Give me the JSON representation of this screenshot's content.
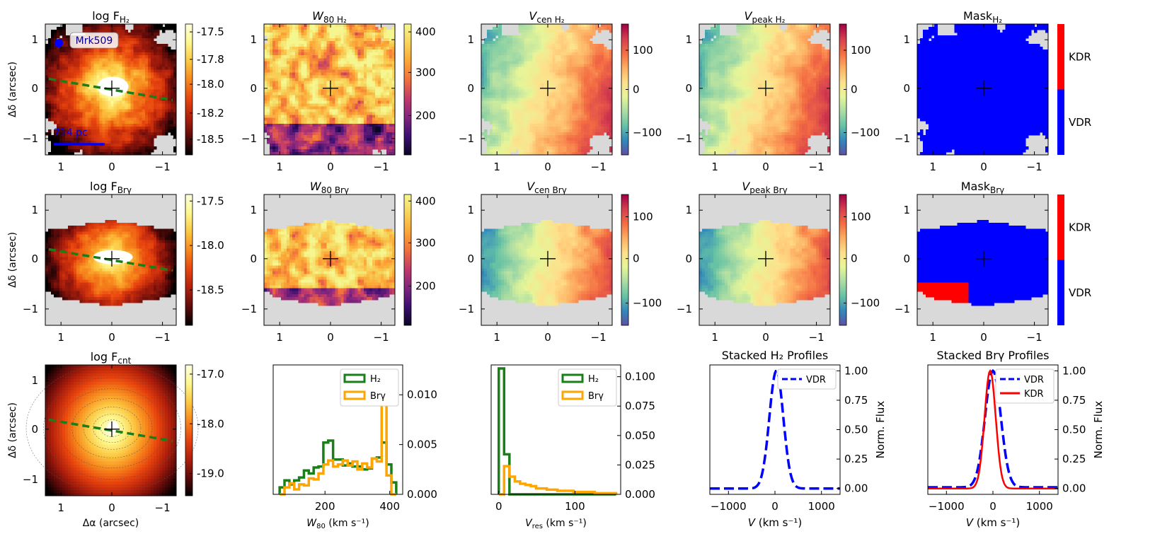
{
  "figure": {
    "ylabel": "Δδ (arcsec)",
    "xlabel_map": "Δα (arcsec)",
    "map_xticks": [
      "1",
      "0",
      "−1"
    ],
    "map_yticks": [
      "1",
      "0",
      "−1"
    ],
    "annotations": {
      "galaxy": "Mrk509",
      "scale": "714 pc"
    }
  },
  "panels": {
    "flux_h2": {
      "title": "log F",
      "sub": "H₂",
      "cbar_ticks": [
        "-17.5",
        "-17.8",
        "-18.0",
        "-18.2",
        "-18.5"
      ],
      "cmap": [
        "#000000",
        "#5e0b0b",
        "#b0200c",
        "#e8440e",
        "#f7861c",
        "#fcc741",
        "#fdf78c",
        "#ffffdf"
      ]
    },
    "w80_h2": {
      "title": "W",
      "sub": "80 H₂",
      "cbar_ticks": [
        "400",
        "300",
        "200"
      ],
      "cmap": [
        "#0a0624",
        "#3b0f6f",
        "#80257f",
        "#c03a6b",
        "#f06f3b",
        "#fca636",
        "#f7d45a",
        "#f5f68f"
      ]
    },
    "vcen_h2": {
      "title": "V",
      "sub": "cen H₂",
      "cbar_ticks": [
        "100",
        "0",
        "−100"
      ],
      "cmap": [
        "#5e4fa2",
        "#3288bd",
        "#66c2a5",
        "#abdda4",
        "#e6f598",
        "#fee08b",
        "#fdae61",
        "#f46d43",
        "#d53e4f",
        "#9e0142"
      ]
    },
    "vpeak_h2": {
      "title": "V",
      "sub": "peak H₂",
      "cbar_ticks": [
        "100",
        "0",
        "−100"
      ],
      "cmap": [
        "#5e4fa2",
        "#3288bd",
        "#66c2a5",
        "#abdda4",
        "#e6f598",
        "#fee08b",
        "#fdae61",
        "#f46d43",
        "#d53e4f",
        "#9e0142"
      ]
    },
    "mask_h2": {
      "title": "Mask",
      "sub": "H₂",
      "cbar_ticks": [
        "KDR",
        "VDR"
      ],
      "cmap": [
        "#0000ff",
        "#ff0000"
      ]
    },
    "flux_brg": {
      "title": "log F",
      "sub": "Brγ",
      "cbar_ticks": [
        "-17.5",
        "-18.0",
        "-18.5"
      ],
      "cmap": [
        "#000000",
        "#5e0b0b",
        "#b0200c",
        "#e8440e",
        "#f7861c",
        "#fcc741",
        "#fdf78c",
        "#ffffdf"
      ]
    },
    "w80_brg": {
      "title": "W",
      "sub": "80 Brγ",
      "cbar_ticks": [
        "400",
        "300",
        "200"
      ],
      "cmap": [
        "#0a0624",
        "#3b0f6f",
        "#80257f",
        "#c03a6b",
        "#f06f3b",
        "#fca636",
        "#f7d45a",
        "#f5f68f"
      ]
    },
    "vcen_brg": {
      "title": "V",
      "sub": "cen Brγ",
      "cbar_ticks": [
        "100",
        "0",
        "−100"
      ],
      "cmap": [
        "#5e4fa2",
        "#3288bd",
        "#66c2a5",
        "#abdda4",
        "#e6f598",
        "#fee08b",
        "#fdae61",
        "#f46d43",
        "#d53e4f",
        "#9e0142"
      ]
    },
    "vpeak_brg": {
      "title": "V",
      "sub": "peak Brγ",
      "cbar_ticks": [
        "100",
        "0",
        "−100"
      ],
      "cmap": [
        "#5e4fa2",
        "#3288bd",
        "#66c2a5",
        "#abdda4",
        "#e6f598",
        "#fee08b",
        "#fdae61",
        "#f46d43",
        "#d53e4f",
        "#9e0142"
      ]
    },
    "mask_brg": {
      "title": "Mask",
      "sub": "Brγ",
      "cbar_ticks": [
        "KDR",
        "VDR"
      ],
      "cmap": [
        "#0000ff",
        "#ff0000"
      ]
    },
    "flux_cnt": {
      "title": "log F",
      "sub": "cnt",
      "cbar_ticks": [
        "-17.0",
        "-18.0",
        "-19.0"
      ],
      "cmap": [
        "#000000",
        "#5e0b0b",
        "#b0200c",
        "#e8440e",
        "#f7861c",
        "#fcc741",
        "#fdf78c",
        "#ffffdf"
      ]
    }
  },
  "chart_data": [
    {
      "type": "histogram",
      "name": "w80_hist",
      "xlabel": "W80 (km s⁻¹)",
      "xlim": [
        40,
        440
      ],
      "ylim": [
        0,
        0.013
      ],
      "xticks": [
        200,
        400
      ],
      "yticks": [
        "0.000",
        "0.005",
        "0.010"
      ],
      "legend": [
        "H₂",
        "Brγ"
      ],
      "bin_edges": [
        60,
        75,
        90,
        105,
        120,
        135,
        150,
        165,
        180,
        195,
        210,
        225,
        240,
        255,
        270,
        285,
        300,
        315,
        330,
        345,
        360,
        375,
        390,
        405,
        420
      ],
      "series": [
        {
          "name": "H₂",
          "color": "#1a7f1a",
          "values": [
            0.0007,
            0.0014,
            0.001,
            0.0014,
            0.0017,
            0.0024,
            0.0021,
            0.0027,
            0.0028,
            0.0052,
            0.0054,
            0.0035,
            0.0035,
            0.0029,
            0.0031,
            0.0028,
            0.0028,
            0.0025,
            0.0026,
            0.0036,
            0.0037,
            0.0052,
            0.003,
            0.0012
          ]
        },
        {
          "name": "Brγ",
          "color": "#ffa500",
          "values": [
            0.0,
            0.0007,
            0.0011,
            0.0005,
            0.001,
            0.0009,
            0.0016,
            0.0015,
            0.0021,
            0.003,
            0.0034,
            0.0028,
            0.003,
            0.0034,
            0.0029,
            0.0033,
            0.0025,
            0.0031,
            0.0027,
            0.0036,
            0.0033,
            0.0121,
            0.0019,
            0.0
          ]
        }
      ]
    },
    {
      "type": "histogram",
      "name": "vres_hist",
      "xlabel": "Vres (km s⁻¹)",
      "xlim": [
        -10,
        160
      ],
      "ylim": [
        0,
        0.11
      ],
      "xticks": [
        0,
        100
      ],
      "yticks": [
        "0.000",
        "0.025",
        "0.050",
        "0.075",
        "0.100"
      ],
      "legend": [
        "H₂",
        "Brγ"
      ],
      "bin_edges": [
        0,
        7,
        14,
        21,
        28,
        35,
        42,
        49,
        56,
        63,
        70,
        77,
        84,
        91,
        98,
        105,
        112,
        119,
        126,
        133,
        140,
        147,
        154
      ],
      "series": [
        {
          "name": "H₂",
          "color": "#1a7f1a",
          "values": [
            0.107,
            0.034,
            0.0,
            0.0,
            0.0,
            0.0,
            0.0,
            0.0,
            0.0,
            0.0,
            0.0,
            0.0,
            0.0,
            0.0,
            0.0,
            0.0,
            0.0,
            0.0,
            0.0,
            0.0,
            0.0,
            0.0
          ]
        },
        {
          "name": "Brγ",
          "color": "#ffa500",
          "values": [
            0.0,
            0.024,
            0.015,
            0.011,
            0.009,
            0.008,
            0.007,
            0.005,
            0.005,
            0.004,
            0.004,
            0.003,
            0.003,
            0.003,
            0.002,
            0.002,
            0.002,
            0.002,
            0.001,
            0.001,
            0.001,
            0.001
          ]
        }
      ]
    },
    {
      "type": "line",
      "name": "stacked_h2",
      "title": "Stacked H₂ Profiles",
      "xlabel": "V (km s⁻¹)",
      "ylabel": "Norm. Flux",
      "xlim": [
        -1400,
        1400
      ],
      "ylim": [
        -0.05,
        1.05
      ],
      "xticks": [
        -1000,
        0,
        1000
      ],
      "yticks": [
        "0.00",
        "0.25",
        "0.50",
        "0.75",
        "1.00"
      ],
      "series": [
        {
          "name": "VDR",
          "color": "#0000ff",
          "style": "dashed",
          "center": 30,
          "sigma": 150,
          "baseline": 0.0
        }
      ]
    },
    {
      "type": "line",
      "name": "stacked_brg",
      "title": "Stacked Brγ Profiles",
      "xlabel": "V (km s⁻¹)",
      "ylabel": "Norm. Flux",
      "xlim": [
        -1400,
        1400
      ],
      "ylim": [
        -0.05,
        1.05
      ],
      "xticks": [
        -1000,
        0,
        1000
      ],
      "yticks": [
        "0.00",
        "0.25",
        "0.50",
        "0.75",
        "1.00"
      ],
      "series": [
        {
          "name": "VDR",
          "color": "#0000ff",
          "style": "dashed",
          "center": 0,
          "sigma": 170,
          "baseline": 0.01
        },
        {
          "name": "KDR",
          "color": "#ff0000",
          "style": "solid",
          "center": -60,
          "sigma": 120,
          "baseline": 0.0
        }
      ]
    }
  ]
}
